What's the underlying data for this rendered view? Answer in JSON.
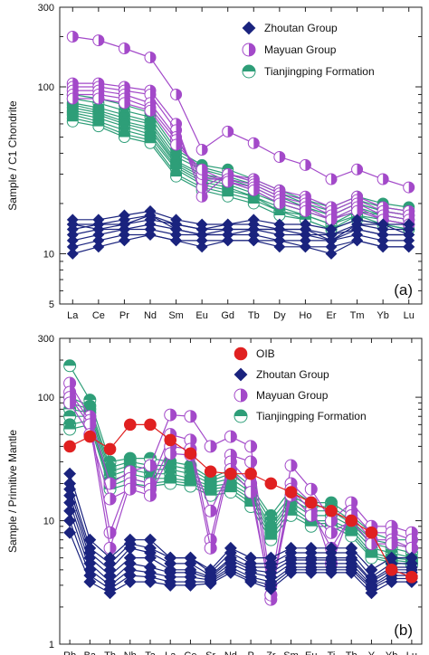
{
  "chart_data": [
    {
      "type": "line",
      "panel_label": "(a)",
      "ylabel": "Sample / C1 Chondrite",
      "yscale": "log",
      "ylim": [
        5,
        300
      ],
      "yticks": [
        5,
        10,
        100,
        300
      ],
      "categories": [
        "La",
        "Ce",
        "Pr",
        "Nd",
        "Sm",
        "Eu",
        "Gd",
        "Tb",
        "Dy",
        "Ho",
        "Er",
        "Tm",
        "Yb",
        "Lu"
      ],
      "legend": {
        "position": "top-right",
        "entries": [
          "Zhoutan Group",
          "Mayuan Group",
          "Tianjingping Formation"
        ]
      },
      "groups": [
        {
          "name": "Zhoutan Group",
          "marker": "diamond",
          "color": "#1a237e",
          "samples": [
            [
              16,
              16,
              17,
              18,
              16,
              15,
              15,
              16,
              15,
              15,
              14,
              16,
              15,
              15
            ],
            [
              15,
              15,
              16,
              17,
              15,
              14,
              15,
              15,
              14,
              14,
              13,
              15,
              14,
              14
            ],
            [
              14,
              15,
              15,
              16,
              15,
              14,
              14,
              14,
              14,
              13,
              13,
              14,
              13,
              13
            ],
            [
              13,
              14,
              14,
              15,
              14,
              13,
              13,
              14,
              13,
              13,
              12,
              14,
              13,
              13
            ],
            [
              12,
              13,
              14,
              14,
              13,
              13,
              13,
              13,
              12,
              12,
              12,
              13,
              12,
              12
            ],
            [
              11,
              12,
              13,
              13,
              12,
              12,
              12,
              12,
              12,
              11,
              11,
              12,
              11,
              11
            ],
            [
              10,
              11,
              12,
              13,
              12,
              11,
              12,
              12,
              11,
              11,
              10,
              12,
              11,
              11
            ],
            [
              15,
              14,
              15,
              17,
              14,
              13,
              14,
              14,
              14,
              14,
              12,
              15,
              15,
              13
            ]
          ]
        },
        {
          "name": "Mayuan Group",
          "marker": "half-circle",
          "color": "#a349c9",
          "samples": [
            [
              200,
              190,
              170,
              150,
              90,
              42,
              54,
              46,
              38,
              34,
              28,
              32,
              28,
              25
            ],
            [
              105,
              105,
              100,
              95,
              60,
              22,
              30,
              28,
              24,
              22,
              19,
              22,
              19,
              18
            ],
            [
              100,
              100,
              95,
              90,
              55,
              25,
              30,
              27,
              23,
              21,
              18,
              21,
              18,
              17
            ],
            [
              95,
              95,
              90,
              80,
              50,
              28,
              28,
              26,
              22,
              20,
              17,
              20,
              17,
              16
            ],
            [
              90,
              90,
              85,
              75,
              48,
              30,
              27,
              25,
              21,
              19,
              16,
              19,
              16,
              15
            ],
            [
              85,
              85,
              80,
              72,
              45,
              32,
              27,
              24,
              20,
              18,
              16,
              18,
              16,
              15
            ]
          ]
        },
        {
          "name": "Tianjingping Formation",
          "marker": "half-circle",
          "color": "#2e9e78",
          "samples": [
            [
              90,
              85,
              78,
              70,
              42,
              34,
              32,
              28,
              24,
              21,
              19,
              22,
              20,
              19
            ],
            [
              85,
              80,
              72,
              66,
              40,
              33,
              30,
              27,
              23,
              20,
              18,
              21,
              19,
              18
            ],
            [
              80,
              75,
              68,
              62,
              38,
              32,
              29,
              26,
              22,
              19,
              17,
              20,
              18,
              17
            ],
            [
              78,
              72,
              65,
              60,
              36,
              30,
              28,
              25,
              21,
              19,
              17,
              20,
              18,
              17
            ],
            [
              75,
              70,
              62,
              57,
              35,
              29,
              27,
              24,
              20,
              18,
              16,
              19,
              17,
              16
            ],
            [
              72,
              68,
              60,
              55,
              34,
              28,
              26,
              23,
              20,
              18,
              16,
              18,
              17,
              16
            ],
            [
              70,
              65,
              58,
              52,
              33,
              27,
              25,
              22,
              19,
              17,
              15,
              18,
              16,
              15
            ],
            [
              68,
              62,
              55,
              50,
              32,
              26,
              24,
              22,
              18,
              17,
              15,
              17,
              16,
              15
            ],
            [
              65,
              60,
              52,
              48,
              30,
              25,
              23,
              21,
              18,
              16,
              14,
              17,
              15,
              14
            ],
            [
              62,
              58,
              50,
              46,
              29,
              24,
              22,
              20,
              17,
              16,
              14,
              16,
              15,
              14
            ]
          ]
        }
      ]
    },
    {
      "type": "line",
      "panel_label": "(b)",
      "ylabel": "Sample / Primitive Mantle",
      "yscale": "log",
      "ylim": [
        1,
        300
      ],
      "yticks": [
        1,
        10,
        100,
        300
      ],
      "categories": [
        "Rb",
        "Ba",
        "Th",
        "Nb",
        "Ta",
        "La",
        "Ce",
        "Sr",
        "Nd",
        "P",
        "Zr",
        "Sm",
        "Eu",
        "Ti",
        "Tb",
        "Y",
        "Yb",
        "Lu"
      ],
      "legend": {
        "position": "top-right",
        "entries": [
          "OIB",
          "Zhoutan Group",
          "Mayuan Group",
          "Tianjingping Formation"
        ]
      },
      "groups": [
        {
          "name": "OIB",
          "marker": "circle",
          "color": "#e02020",
          "samples": [
            [
              40,
              48,
              38,
              60,
              60,
              45,
              35,
              25,
              24,
              24,
              20,
              17,
              14,
              12,
              10,
              8,
              4,
              3.5
            ]
          ]
        },
        {
          "name": "Zhoutan Group",
          "marker": "diamond",
          "color": "#1a237e",
          "samples": [
            [
              24,
              7,
              5,
              7,
              7,
              5,
              5,
              4,
              6,
              5,
              5,
              6,
              6,
              6,
              6,
              4,
              5,
              5
            ],
            [
              20,
              6,
              4.5,
              6.5,
              6,
              5,
              5,
              3.8,
              5.5,
              4.5,
              4.5,
              5.5,
              5.5,
              5.5,
              5.5,
              3.5,
              4.5,
              4.5
            ],
            [
              18,
              5.5,
              4,
              6,
              5.5,
              4.5,
              4.5,
              3.6,
              5,
              4.2,
              4.2,
              5,
              5,
              5,
              5,
              3.3,
              4.2,
              4.2
            ],
            [
              16,
              5,
              3.6,
              5,
              5,
              4,
              4,
              3.5,
              4.8,
              4,
              3.8,
              4.8,
              4.8,
              4.8,
              4.8,
              3.2,
              4,
              4
            ],
            [
              14,
              4.5,
              3.2,
              4.5,
              4.2,
              3.8,
              3.8,
              3.4,
              4.5,
              3.8,
              3.5,
              4.5,
              4.5,
              4.5,
              4.5,
              3,
              3.8,
              3.8
            ],
            [
              12,
              4,
              3,
              4,
              3.8,
              3.5,
              3.5,
              3.3,
              4.2,
              3.5,
              3.2,
              4.2,
              4.2,
              4.2,
              4.2,
              2.9,
              3.6,
              3.6
            ],
            [
              10,
              3.6,
              2.8,
              3.6,
              3.5,
              3.2,
              3.2,
              3.2,
              4,
              3.3,
              3,
              4,
              4,
              4,
              4,
              2.8,
              3.4,
              3.4
            ],
            [
              8,
              3.2,
              2.6,
              3.2,
              3.2,
              3,
              3,
              3.1,
              3.8,
              3.2,
              2.8,
              3.8,
              3.8,
              3.8,
              3.8,
              2.6,
              3.2,
              3.2
            ]
          ]
        },
        {
          "name": "Mayuan Group",
          "marker": "half-circle",
          "color": "#a349c9",
          "samples": [
            [
              130,
              70,
              20,
              25,
              28,
              72,
              70,
              40,
              48,
              40,
              3,
              28,
              18,
              10,
              14,
              9,
              9,
              8
            ],
            [
              110,
              65,
              8,
              22,
              20,
              50,
              45,
              7,
              34,
              30,
              2.5,
              20,
              14,
              4.5,
              12,
              8,
              8,
              7
            ],
            [
              100,
              60,
              6,
              20,
              18,
              40,
              38,
              6,
              30,
              20,
              2.3,
              18,
              12,
              6,
              11,
              7,
              7,
              6
            ],
            [
              90,
              50,
              15,
              18,
              16,
              35,
              34,
              12,
              26,
              17,
              2.5,
              16,
              11,
              8,
              10,
              6.5,
              6.5,
              6
            ]
          ]
        },
        {
          "name": "Tianjingping Formation",
          "marker": "half-circle",
          "color": "#2e9e78",
          "samples": [
            [
              180,
              95,
              30,
              32,
              32,
              30,
              28,
              22,
              26,
              19,
              11,
              18,
              14,
              14,
              11,
              8,
              7,
              7
            ],
            [
              100,
              85,
              27,
              30,
              28,
              28,
              26,
              21,
              24,
              18,
              10,
              16,
              13,
              13,
              10,
              7,
              6.5,
              6
            ],
            [
              90,
              80,
              25,
              28,
              26,
              26,
              24,
              20,
              22,
              17,
              9,
              15,
              12,
              12,
              9.5,
              6.5,
              6,
              5.5
            ],
            [
              80,
              75,
              23,
              26,
              24,
              24,
              22,
              19,
              20,
              16,
              8.5,
              14,
              11,
              11,
              9,
              6,
              5.5,
              5
            ],
            [
              70,
              70,
              21,
              24,
              22,
              22,
              21,
              18,
              19,
              15,
              8,
              13,
              10,
              10,
              8.5,
              5.5,
              5,
              4.8
            ],
            [
              60,
              65,
              19,
              22,
              20,
              21,
              20,
              17,
              18,
              14,
              7.5,
              12,
              9.5,
              9.5,
              8,
              5.2,
              4.8,
              4.6
            ],
            [
              55,
              60,
              18,
              20,
              19,
              20,
              19,
              16,
              17,
              13,
              7,
              11,
              9,
              9,
              7.5,
              5,
              4.6,
              4.4
            ]
          ]
        }
      ]
    }
  ]
}
